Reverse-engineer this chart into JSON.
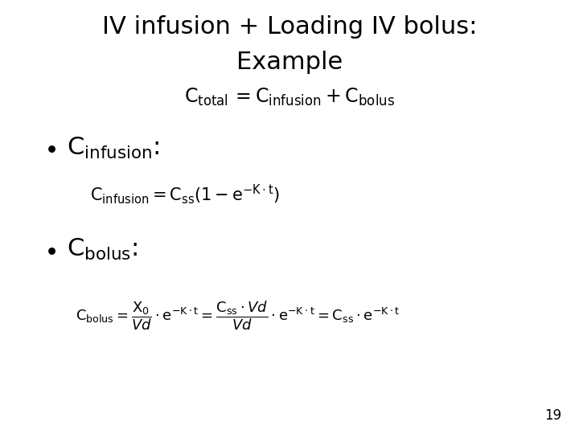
{
  "title_line1": "IV infusion + Loading IV bolus:",
  "title_line2": "Example",
  "background_color": "#ffffff",
  "text_color": "#000000",
  "title1_fontsize": 22,
  "title2_fontsize": 22,
  "ctotal_fontsize": 17,
  "bullet_label_fontsize": 22,
  "formula1_fontsize": 15,
  "formula2_fontsize": 13,
  "page_number": "19",
  "page_fontsize": 12
}
